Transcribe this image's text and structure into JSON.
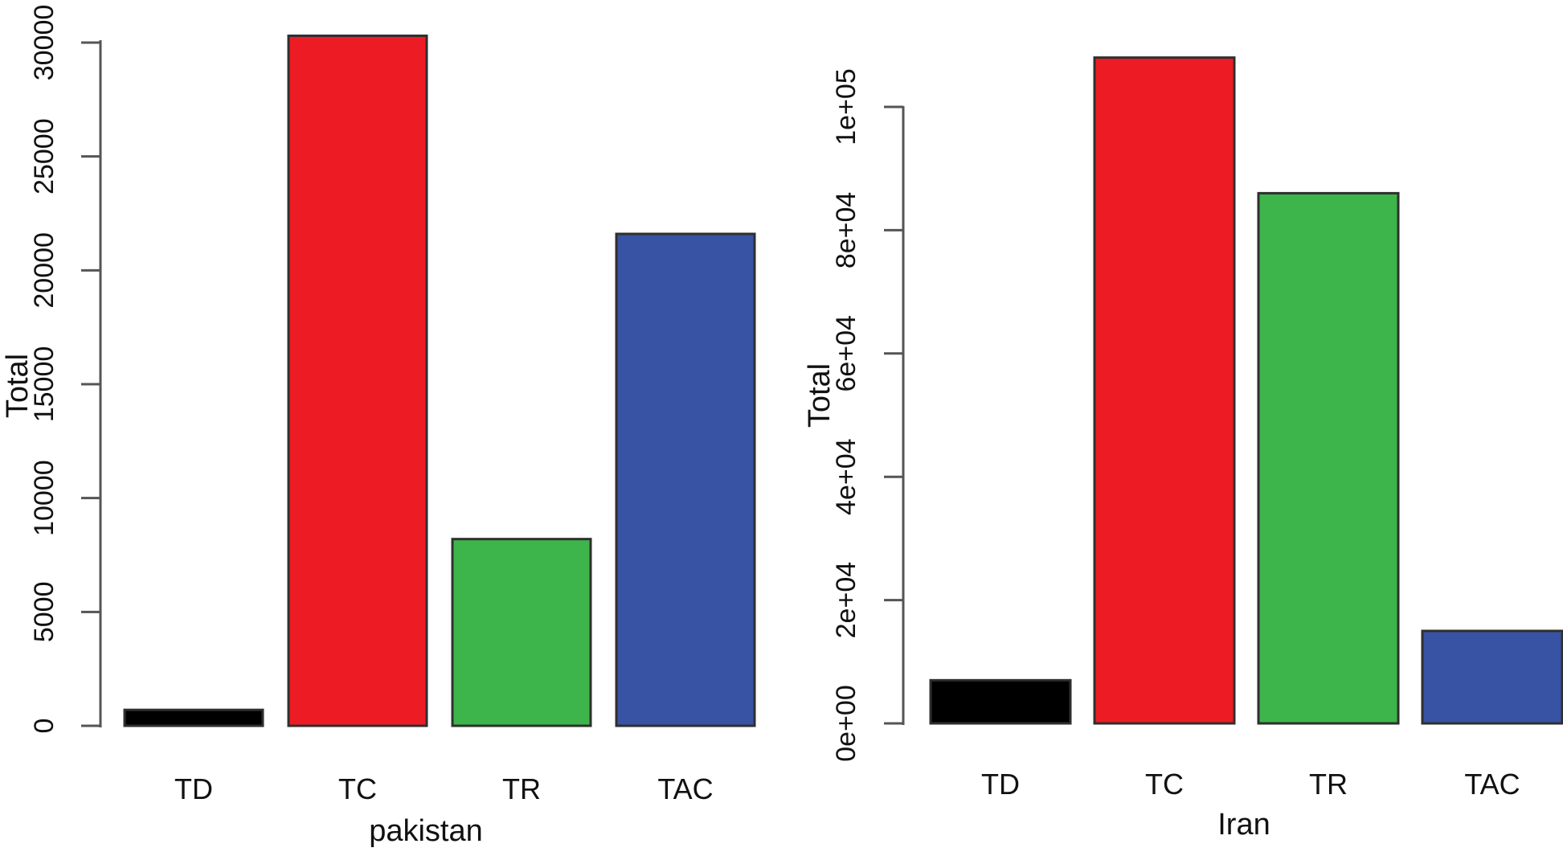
{
  "chart_data": [
    {
      "type": "bar",
      "title": "",
      "xlabel": "pakistan",
      "ylabel": "Total",
      "categories": [
        "TD",
        "TC",
        "TR",
        "TAC"
      ],
      "values": [
        700,
        30300,
        8200,
        21600
      ],
      "ylim": [
        0,
        30000
      ],
      "yticks": [
        0,
        5000,
        10000,
        15000,
        20000,
        25000,
        30000
      ],
      "ytick_labels": [
        "0",
        "5000",
        "10000",
        "15000",
        "20000",
        "25000",
        "30000"
      ],
      "colors": [
        "#000000",
        "#ed1c24",
        "#3db54a",
        "#3853a4"
      ],
      "grid": false
    },
    {
      "type": "bar",
      "title": "",
      "xlabel": "Iran",
      "ylabel": "Total",
      "categories": [
        "TD",
        "TC",
        "TR",
        "TAC"
      ],
      "values": [
        7000,
        108000,
        86000,
        15000
      ],
      "ylim": [
        0,
        100000
      ],
      "yticks": [
        0,
        20000,
        40000,
        60000,
        80000,
        100000
      ],
      "ytick_labels": [
        "0e+00",
        "2e+04",
        "4e+04",
        "6e+04",
        "8e+04",
        "1e+05"
      ],
      "colors": [
        "#000000",
        "#ed1c24",
        "#3db54a",
        "#3853a4"
      ],
      "grid": false
    }
  ]
}
